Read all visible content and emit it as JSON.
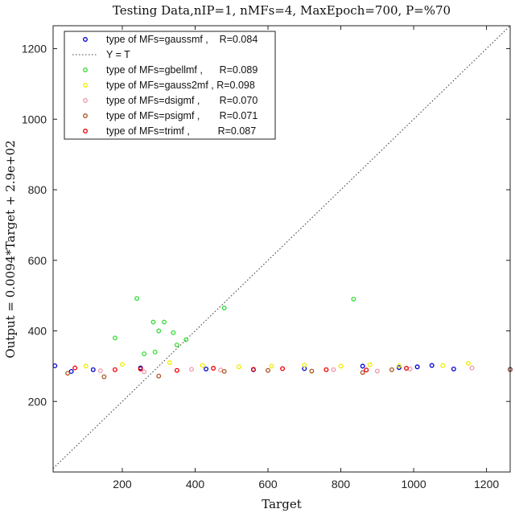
{
  "chart_data": {
    "type": "scatter",
    "title": "Testing Data,nIP=1, nMFs=4, MaxEpoch=700, P=%70",
    "xlabel": "Target",
    "ylabel": "Output  = 0.0094*Target + 2.9e+02",
    "xlim": [
      10,
      1265
    ],
    "ylim": [
      0,
      1265
    ],
    "xticks": [
      200,
      400,
      600,
      800,
      1000,
      1200
    ],
    "yticks": [
      200,
      400,
      600,
      800,
      1000,
      1200
    ],
    "grid": false,
    "legend_position": "top-left",
    "legend": [
      {
        "label": "type of MFs=gaussmf ,    R=0.084",
        "color": "#0000cc",
        "marker": "circle"
      },
      {
        "label": "Y = T",
        "color": "#444444",
        "marker": "dotted-line"
      },
      {
        "label": "type of MFs=gbellmf ,      R=0.089",
        "color": "#33dd33",
        "marker": "circle"
      },
      {
        "label": "type of MFs=gauss2mf , R=0.098",
        "color": "#eeee00",
        "marker": "circle"
      },
      {
        "label": "type of MFs=dsigmf ,       R=0.070",
        "color": "#ee99aa",
        "marker": "circle"
      },
      {
        "label": "type of MFs=psigmf ,       R=0.071",
        "color": "#aa5522",
        "marker": "circle"
      },
      {
        "label": "type of MFs=trimf ,          R=0.087",
        "color": "#ee0000",
        "marker": "circle"
      }
    ],
    "reference_line": {
      "name": "Y = T",
      "x": [
        10,
        1265
      ],
      "y": [
        10,
        1265
      ]
    },
    "series": [
      {
        "name": "type of MFs=gaussmf",
        "color": "#0000cc",
        "x": [
          15,
          60,
          120,
          250,
          430,
          560,
          700,
          860,
          960,
          1010,
          1050,
          1110,
          1265
        ],
        "y": [
          301,
          285,
          290,
          295,
          292,
          290,
          293,
          300,
          296,
          298,
          302,
          292,
          291
        ]
      },
      {
        "name": "type of MFs=gbellmf",
        "color": "#33dd33",
        "x": [
          240,
          285,
          300,
          315,
          180,
          340,
          375,
          480,
          835,
          290,
          260,
          350
        ],
        "y": [
          492,
          425,
          400,
          425,
          380,
          395,
          375,
          465,
          490,
          340,
          335,
          360
        ]
      },
      {
        "name": "type of MFs=gauss2mf",
        "color": "#eeee00",
        "x": [
          100,
          200,
          330,
          420,
          520,
          610,
          700,
          800,
          880,
          960,
          1080,
          1150
        ],
        "y": [
          300,
          305,
          310,
          302,
          298,
          300,
          303,
          300,
          304,
          301,
          302,
          308
        ]
      },
      {
        "name": "type of MFs=dsigmf",
        "color": "#ee99aa",
        "x": [
          140,
          260,
          390,
          470,
          640,
          780,
          900,
          990,
          1160
        ],
        "y": [
          287,
          284,
          291,
          289,
          293,
          290,
          286,
          292,
          295
        ]
      },
      {
        "name": "type of MFs=psigmf",
        "color": "#aa5522",
        "x": [
          50,
          150,
          300,
          480,
          600,
          720,
          860,
          940,
          1265
        ],
        "y": [
          280,
          270,
          272,
          285,
          288,
          286,
          282,
          290,
          290
        ]
      },
      {
        "name": "type of MFs=trimf",
        "color": "#ee0000",
        "x": [
          70,
          180,
          250,
          350,
          450,
          560,
          640,
          760,
          870,
          980
        ],
        "y": [
          295,
          290,
          292,
          288,
          294,
          291,
          293,
          290,
          289,
          294
        ]
      }
    ]
  }
}
